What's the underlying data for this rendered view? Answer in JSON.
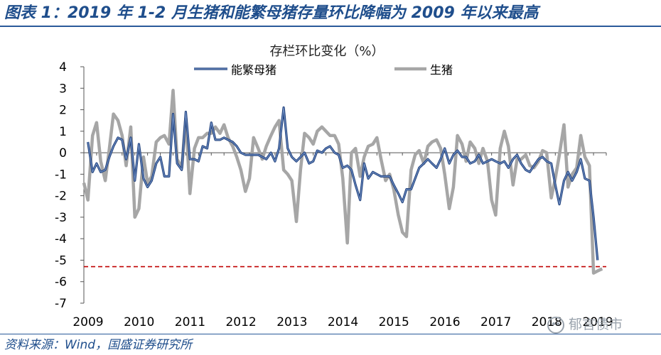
{
  "figure_title": "图表 1：2019 年 1-2 月生猪和能繁母猪存量环比降幅为 2009 年以来最高",
  "source_note": "资料来源：Wind，国盛证券研究所",
  "watermark": "郁言债市",
  "colors": {
    "title_blue": "#1f4e8c",
    "sow_line": "#1f3f7a",
    "hog_line": "#a6a6a6",
    "ref_line": "#c00000"
  },
  "chart_data": {
    "type": "line",
    "title": "存栏环比变化（%）",
    "xlabel": "",
    "ylabel": "",
    "ylim": [
      -7,
      4
    ],
    "yticks": [
      "4",
      "3",
      "2",
      "1",
      "0",
      "-1",
      "-2",
      "-3",
      "-4",
      "-5",
      "-6",
      "-7"
    ],
    "xlim": [
      2009,
      2019.25
    ],
    "xticks": [
      "2009",
      "2010",
      "2011",
      "2012",
      "2013",
      "2014",
      "2015",
      "2016",
      "2017",
      "2018",
      "2019"
    ],
    "legend": {
      "position": "top",
      "entries": [
        "能繁母猪",
        "生猪"
      ]
    },
    "reference_line": {
      "y": -5.3,
      "style": "dashed"
    },
    "series": [
      {
        "name": "能繁母猪",
        "x": [
          2009.08,
          2009.17,
          2009.25,
          2009.33,
          2009.42,
          2009.5,
          2009.58,
          2009.67,
          2009.75,
          2009.83,
          2009.92,
          2010.0,
          2010.08,
          2010.17,
          2010.25,
          2010.33,
          2010.42,
          2010.5,
          2010.58,
          2010.67,
          2010.75,
          2010.83,
          2010.92,
          2011.0,
          2011.08,
          2011.17,
          2011.25,
          2011.33,
          2011.42,
          2011.5,
          2011.58,
          2011.67,
          2011.75,
          2011.83,
          2011.92,
          2012.0,
          2012.08,
          2012.17,
          2012.25,
          2012.33,
          2012.42,
          2012.5,
          2012.58,
          2012.67,
          2012.75,
          2012.83,
          2012.92,
          2013.0,
          2013.08,
          2013.17,
          2013.25,
          2013.33,
          2013.42,
          2013.5,
          2013.58,
          2013.67,
          2013.75,
          2013.83,
          2013.92,
          2014.0,
          2014.08,
          2014.17,
          2014.25,
          2014.33,
          2014.42,
          2014.5,
          2014.58,
          2014.67,
          2014.75,
          2014.83,
          2014.92,
          2015.0,
          2015.08,
          2015.17,
          2015.25,
          2015.33,
          2015.42,
          2015.5,
          2015.58,
          2015.67,
          2015.75,
          2015.83,
          2015.92,
          2016.0,
          2016.08,
          2016.17,
          2016.25,
          2016.33,
          2016.42,
          2016.5,
          2016.58,
          2016.67,
          2016.75,
          2016.83,
          2016.92,
          2017.0,
          2017.08,
          2017.17,
          2017.25,
          2017.33,
          2017.42,
          2017.5,
          2017.58,
          2017.67,
          2017.75,
          2017.83,
          2017.92,
          2018.0,
          2018.08,
          2018.17,
          2018.25,
          2018.33,
          2018.42,
          2018.5,
          2018.58,
          2018.67,
          2018.75,
          2018.83,
          2018.92,
          2019.0,
          2019.08
        ],
        "values": [
          0.5,
          -0.9,
          -0.5,
          -0.9,
          -0.8,
          -0.2,
          0.3,
          0.7,
          0.6,
          -0.3,
          0.7,
          -1.3,
          0.4,
          -1.2,
          -1.6,
          -1.3,
          -0.5,
          -0.2,
          -1.1,
          -1.1,
          1.8,
          -0.5,
          -0.8,
          1.9,
          -0.3,
          -0.3,
          -0.4,
          0.3,
          0.2,
          1.4,
          0.6,
          0.6,
          0.7,
          0.6,
          0.5,
          0.3,
          0.0,
          -0.1,
          -0.1,
          -0.1,
          -0.1,
          -0.2,
          -0.3,
          0.0,
          -0.4,
          0.2,
          2.1,
          0.2,
          -0.2,
          -0.4,
          -0.2,
          0.0,
          -0.5,
          -0.4,
          0.1,
          0.0,
          0.2,
          0.3,
          0.0,
          -0.1,
          -0.7,
          -0.6,
          -0.8,
          -1.5,
          -2.2,
          -0.5,
          -1.2,
          -0.9,
          -1.0,
          -1.1,
          -1.1,
          -1.1,
          -1.5,
          -1.9,
          -2.3,
          -1.7,
          -1.7,
          -1.2,
          -0.7,
          -0.5,
          -0.3,
          -0.5,
          -0.7,
          -0.3,
          0.2,
          -0.5,
          -0.1,
          0.1,
          -0.2,
          -0.2,
          -0.5,
          -0.4,
          -0.1,
          -0.5,
          -0.4,
          -0.3,
          -0.4,
          -0.5,
          -0.4,
          -0.7,
          -0.3,
          -0.1,
          -0.5,
          -0.8,
          -0.9,
          -0.6,
          -0.3,
          -0.2,
          -0.4,
          -0.5,
          -1.5,
          -2.4,
          -1.3,
          -0.9,
          -1.3,
          -0.9,
          -0.3,
          -1.2,
          -1.3,
          -3.0,
          -5.0
        ]
      },
      {
        "name": "生猪",
        "x": [
          2009.0,
          2009.08,
          2009.17,
          2009.25,
          2009.33,
          2009.42,
          2009.5,
          2009.58,
          2009.67,
          2009.75,
          2009.83,
          2009.92,
          2010.0,
          2010.08,
          2010.17,
          2010.25,
          2010.33,
          2010.42,
          2010.5,
          2010.58,
          2010.67,
          2010.75,
          2010.83,
          2010.92,
          2011.0,
          2011.08,
          2011.17,
          2011.25,
          2011.33,
          2011.42,
          2011.5,
          2011.58,
          2011.67,
          2011.75,
          2011.83,
          2011.92,
          2012.0,
          2012.08,
          2012.17,
          2012.25,
          2012.33,
          2012.42,
          2012.5,
          2012.58,
          2012.67,
          2012.75,
          2012.83,
          2012.92,
          2013.0,
          2013.08,
          2013.17,
          2013.25,
          2013.33,
          2013.42,
          2013.5,
          2013.58,
          2013.67,
          2013.75,
          2013.83,
          2013.92,
          2014.0,
          2014.08,
          2014.17,
          2014.25,
          2014.33,
          2014.42,
          2014.5,
          2014.58,
          2014.67,
          2014.75,
          2014.83,
          2014.92,
          2015.0,
          2015.08,
          2015.17,
          2015.25,
          2015.33,
          2015.42,
          2015.5,
          2015.58,
          2015.67,
          2015.75,
          2015.83,
          2015.92,
          2016.0,
          2016.08,
          2016.17,
          2016.25,
          2016.33,
          2016.42,
          2016.5,
          2016.58,
          2016.67,
          2016.75,
          2016.83,
          2016.92,
          2017.0,
          2017.08,
          2017.17,
          2017.25,
          2017.33,
          2017.42,
          2017.5,
          2017.58,
          2017.67,
          2017.75,
          2017.83,
          2017.92,
          2018.0,
          2018.08,
          2018.17,
          2018.25,
          2018.33,
          2018.42,
          2018.5,
          2018.58,
          2018.67,
          2018.75,
          2018.83,
          2018.92,
          2019.0,
          2019.08,
          2019.17
        ],
        "values": [
          -1.4,
          -2.2,
          0.8,
          1.4,
          -0.4,
          -1.3,
          0.2,
          1.8,
          1.5,
          0.8,
          -0.6,
          1.2,
          -3.0,
          -2.6,
          -0.2,
          -1.4,
          -1.1,
          0.5,
          0.7,
          0.8,
          0.4,
          2.9,
          -0.3,
          -0.7,
          1.6,
          -1.9,
          0.2,
          0.7,
          0.7,
          0.9,
          0.9,
          1.2,
          0.9,
          1.3,
          0.7,
          0.3,
          -0.2,
          -0.8,
          -1.8,
          -1.2,
          0.7,
          0.2,
          -0.3,
          0.3,
          0.8,
          1.2,
          1.5,
          -0.8,
          -1.0,
          -1.3,
          -3.2,
          -0.8,
          0.9,
          0.7,
          0.4,
          1.0,
          1.2,
          1.0,
          0.8,
          0.8,
          0.4,
          -1.2,
          -4.2,
          0.0,
          0.2,
          -1.1,
          -0.2,
          0.3,
          0.4,
          0.7,
          -0.3,
          -1.3,
          -1.0,
          -1.7,
          -2.9,
          -3.7,
          -3.9,
          -0.8,
          -0.1,
          0.1,
          -0.5,
          0.3,
          0.5,
          0.6,
          0.2,
          -1.0,
          -2.6,
          -1.6,
          0.8,
          0.4,
          -0.4,
          0.5,
          0.2,
          -0.5,
          0.2,
          -0.4,
          -2.2,
          -2.9,
          0.2,
          1.0,
          0.3,
          -1.5,
          -0.3,
          -0.3,
          -0.1,
          -0.6,
          -0.7,
          -0.4,
          0.1,
          0.0,
          -2.1,
          -1.2,
          -0.1,
          1.3,
          -1.6,
          -1.0,
          -0.7,
          0.8,
          -0.2,
          -0.6,
          -5.6,
          -5.5,
          -5.4
        ]
      }
    ]
  }
}
